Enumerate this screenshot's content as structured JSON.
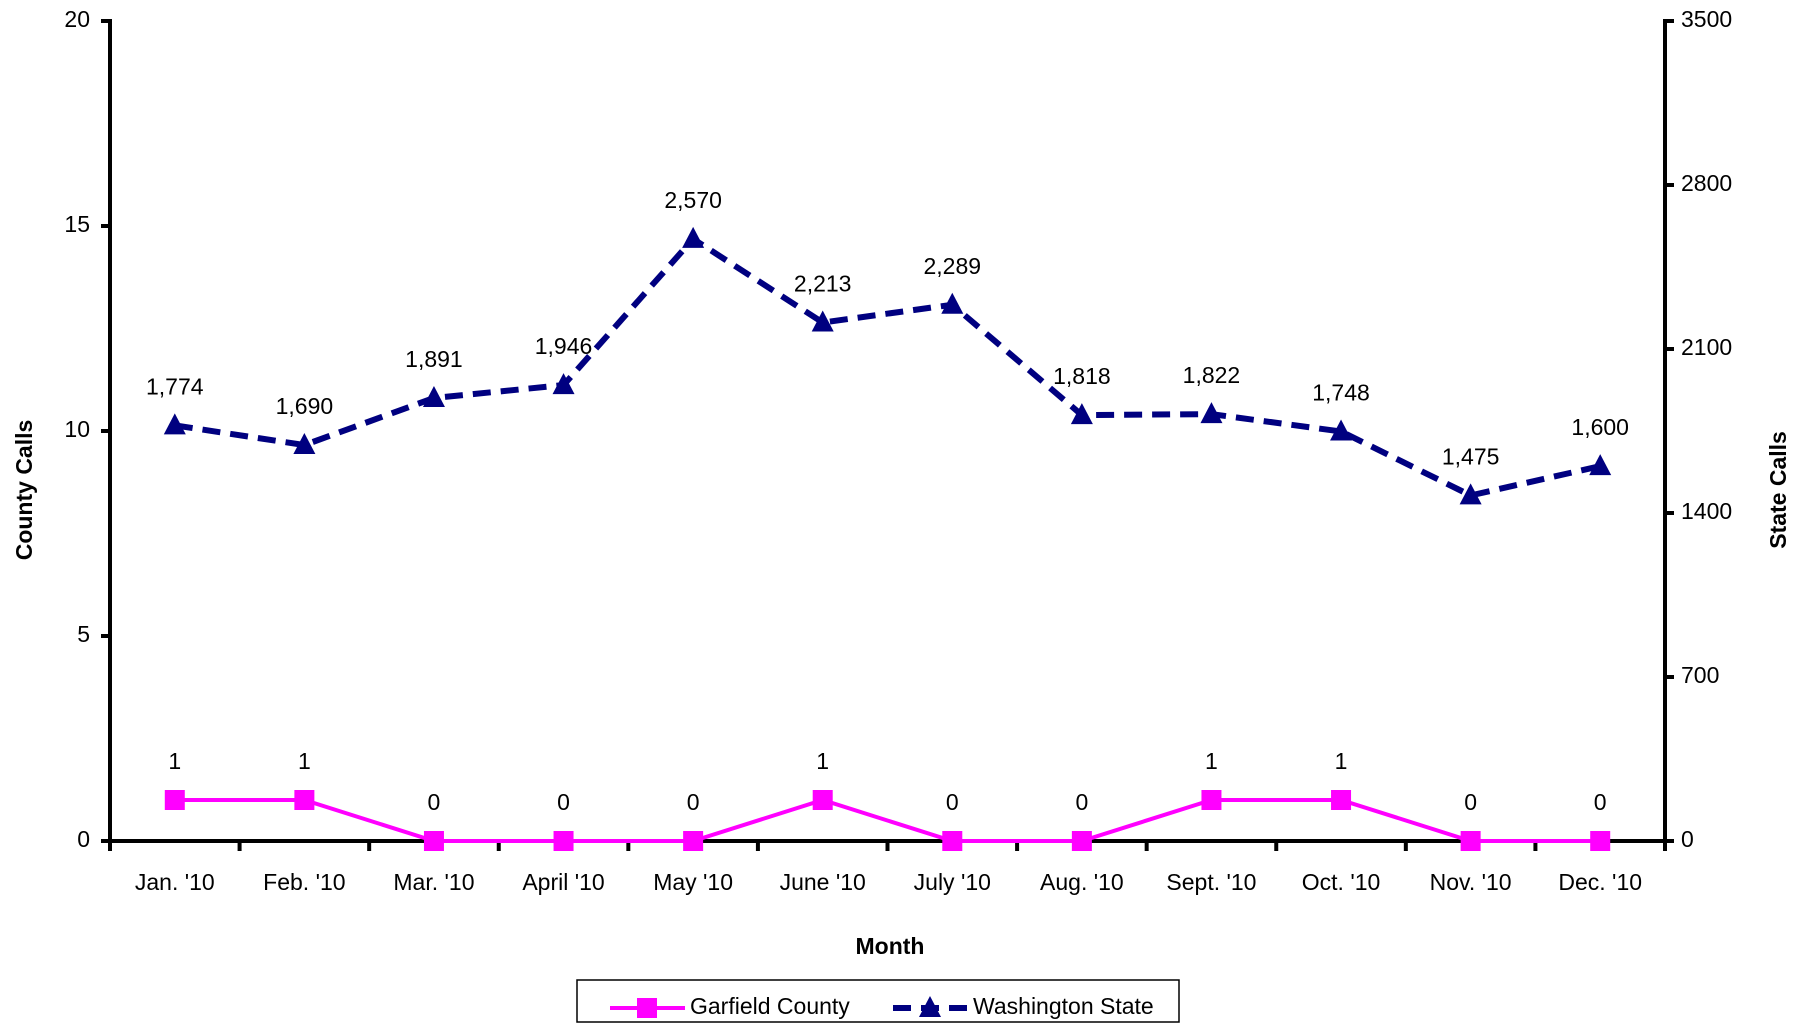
{
  "chart_data": {
    "type": "line",
    "categories": [
      "Jan. '10",
      "Feb. '10",
      "Mar. '10",
      "April '10",
      "May '10",
      "June '10",
      "July '10",
      "Aug. '10",
      "Sept. '10",
      "Oct. '10",
      "Nov. '10",
      "Dec. '10"
    ],
    "series": [
      {
        "name": "Garfield County",
        "color": "#ff00ff",
        "values": [
          1,
          1,
          0,
          0,
          0,
          1,
          0,
          0,
          1,
          1,
          0,
          0
        ]
      },
      {
        "name": "Washington State",
        "color": "#000080",
        "axis": "y2",
        "values": [
          1774,
          1690,
          1891,
          1946,
          2570,
          2213,
          2289,
          1818,
          1822,
          1748,
          1475,
          1600
        ],
        "value_labels": [
          "1,774",
          "1,690",
          "1,891",
          "1,946",
          "2,570",
          "2,213",
          "2,289",
          "1,818",
          "1,822",
          "1,748",
          "1,475",
          "1,600"
        ]
      }
    ],
    "x_label": "Month",
    "y_label": "County Calls",
    "y2_label": "State Calls",
    "ylim": [
      0,
      20
    ],
    "yticks": [
      0,
      5,
      10,
      15,
      20
    ],
    "y2lim": [
      0,
      3500
    ],
    "y2ticks": [
      0,
      700,
      1400,
      2100,
      2800,
      3500
    ],
    "grid": false,
    "legend": "bottom"
  }
}
